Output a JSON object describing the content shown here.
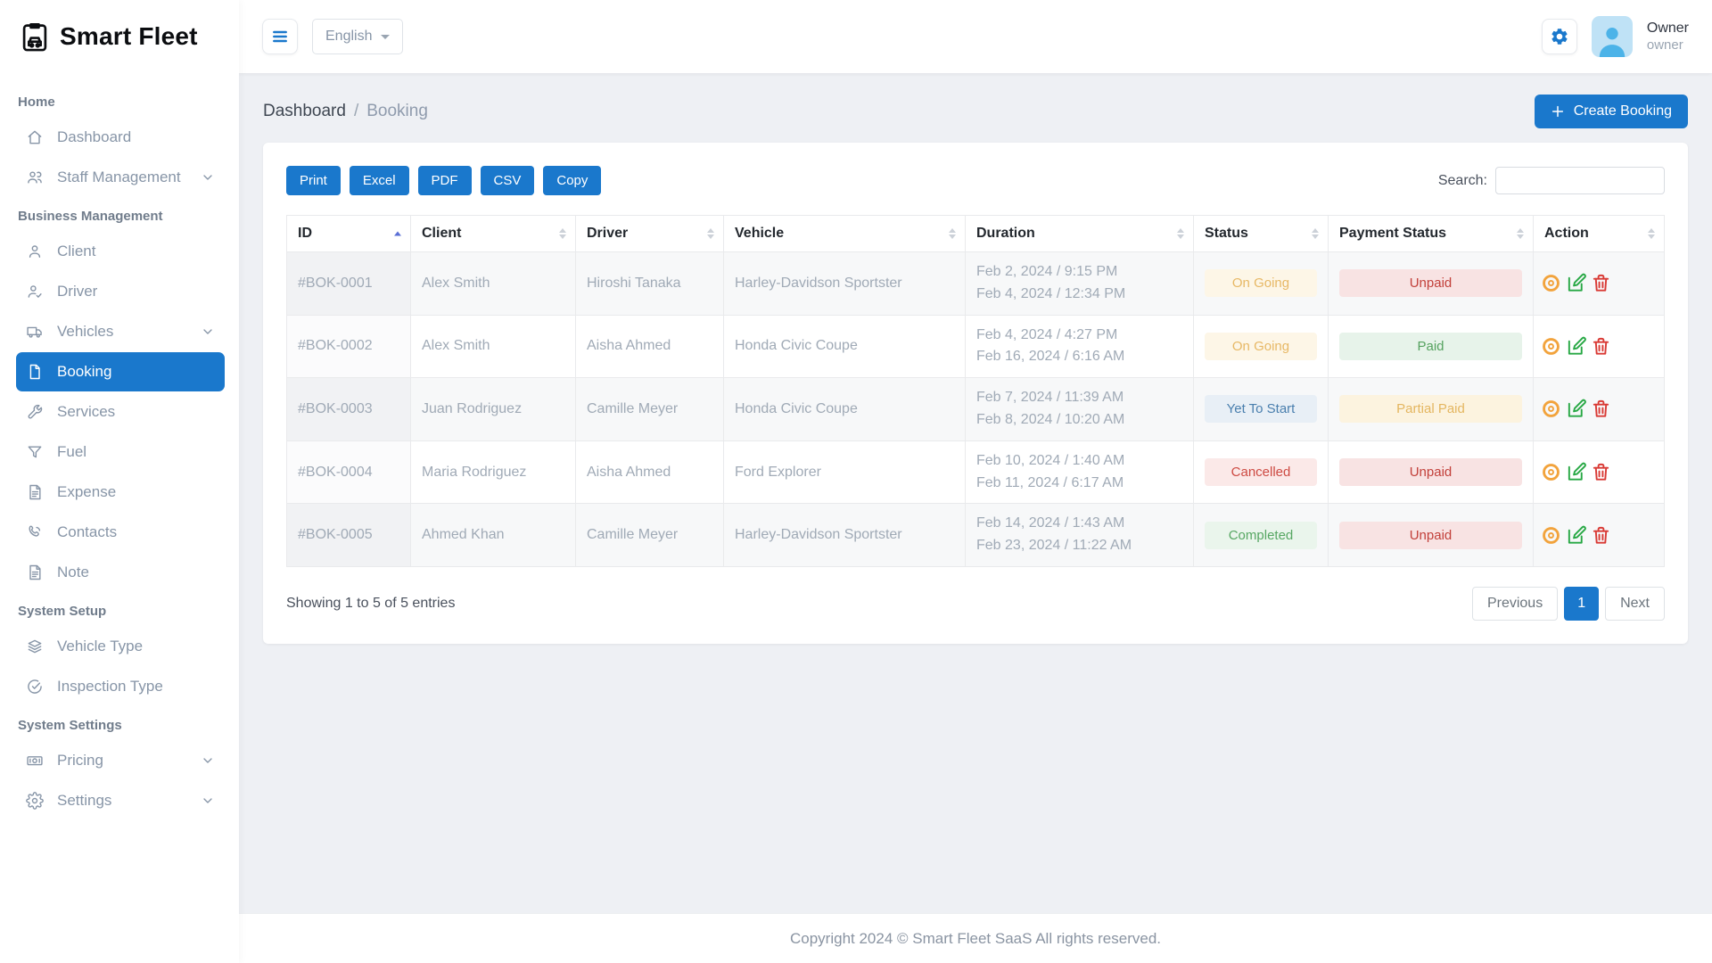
{
  "brand": {
    "name": "Smart Fleet"
  },
  "header": {
    "language": "English",
    "user": {
      "name": "Owner",
      "role": "owner"
    }
  },
  "sidebar": {
    "sections": [
      {
        "label": "Home",
        "items": [
          {
            "label": "Dashboard",
            "icon": "home-icon"
          },
          {
            "label": "Staff Management",
            "icon": "people-icon",
            "expandable": true
          }
        ]
      },
      {
        "label": "Business Management",
        "items": [
          {
            "label": "Client",
            "icon": "person-icon"
          },
          {
            "label": "Driver",
            "icon": "person-check-icon"
          },
          {
            "label": "Vehicles",
            "icon": "truck-icon",
            "expandable": true
          },
          {
            "label": "Booking",
            "icon": "file-icon",
            "active": true
          },
          {
            "label": "Services",
            "icon": "wrench-icon"
          },
          {
            "label": "Fuel",
            "icon": "funnel-icon"
          },
          {
            "label": "Expense",
            "icon": "file-text-icon"
          },
          {
            "label": "Contacts",
            "icon": "phone-icon"
          },
          {
            "label": "Note",
            "icon": "note-icon"
          }
        ]
      },
      {
        "label": "System Setup",
        "items": [
          {
            "label": "Vehicle Type",
            "icon": "layers-icon"
          },
          {
            "label": "Inspection Type",
            "icon": "check-circle-icon"
          }
        ]
      },
      {
        "label": "System Settings",
        "items": [
          {
            "label": "Pricing",
            "icon": "cash-icon",
            "expandable": true
          },
          {
            "label": "Settings",
            "icon": "gear-icon",
            "expandable": true
          }
        ]
      }
    ]
  },
  "breadcrumb": {
    "parent": "Dashboard",
    "separator": "/",
    "current": "Booking"
  },
  "create_button": {
    "label": "Create Booking",
    "icon": "plus-icon"
  },
  "toolbar": {
    "export_buttons": [
      "Print",
      "Excel",
      "PDF",
      "CSV",
      "Copy"
    ],
    "search_label": "Search:",
    "search_value": ""
  },
  "table": {
    "columns": [
      {
        "label": "ID",
        "sorted": "asc"
      },
      {
        "label": "Client"
      },
      {
        "label": "Driver"
      },
      {
        "label": "Vehicle"
      },
      {
        "label": "Duration"
      },
      {
        "label": "Status"
      },
      {
        "label": "Payment Status"
      },
      {
        "label": "Action"
      }
    ],
    "rows": [
      {
        "id": "#BOK-0001",
        "client": "Alex Smith",
        "driver": "Hiroshi Tanaka",
        "vehicle": "Harley-Davidson Sportster",
        "duration": [
          "Feb 2, 2024 / 9:15 PM",
          "Feb 4, 2024 / 12:34 PM"
        ],
        "status": {
          "label": "On Going",
          "type": "ongoing"
        },
        "payment": {
          "label": "Unpaid",
          "type": "unpaid"
        }
      },
      {
        "id": "#BOK-0002",
        "client": "Alex Smith",
        "driver": "Aisha Ahmed",
        "vehicle": "Honda Civic Coupe",
        "duration": [
          "Feb 4, 2024 / 4:27 PM",
          "Feb 16, 2024 / 6:16 AM"
        ],
        "status": {
          "label": "On Going",
          "type": "ongoing"
        },
        "payment": {
          "label": "Paid",
          "type": "paid"
        }
      },
      {
        "id": "#BOK-0003",
        "client": "Juan Rodriguez",
        "driver": "Camille Meyer",
        "vehicle": "Honda Civic Coupe",
        "duration": [
          "Feb 7, 2024 / 11:39 AM",
          "Feb 8, 2024 / 10:20 AM"
        ],
        "status": {
          "label": "Yet To Start",
          "type": "yettostart"
        },
        "payment": {
          "label": "Partial Paid",
          "type": "partial"
        }
      },
      {
        "id": "#BOK-0004",
        "client": "Maria Rodriguez",
        "driver": "Aisha Ahmed",
        "vehicle": "Ford Explorer",
        "duration": [
          "Feb 10, 2024 / 1:40 AM",
          "Feb 11, 2024 / 6:17 AM"
        ],
        "status": {
          "label": "Cancelled",
          "type": "cancelled"
        },
        "payment": {
          "label": "Unpaid",
          "type": "unpaid"
        }
      },
      {
        "id": "#BOK-0005",
        "client": "Ahmed Khan",
        "driver": "Camille Meyer",
        "vehicle": "Harley-Davidson Sportster",
        "duration": [
          "Feb 14, 2024 / 1:43 AM",
          "Feb 23, 2024 / 11:22 AM"
        ],
        "status": {
          "label": "Completed",
          "type": "completed"
        },
        "payment": {
          "label": "Unpaid",
          "type": "unpaid"
        }
      }
    ]
  },
  "summary": "Showing 1 to 5 of 5 entries",
  "pagination": {
    "previous": "Previous",
    "page": "1",
    "next": "Next"
  },
  "footer": {
    "copyright": "Copyright 2024 © Smart Fleet SaaS All rights reserved."
  },
  "colors": {
    "primary": "#1a78cc",
    "status_ongoing": "#e7b865",
    "status_yettostart": "#4a7fae",
    "status_cancelled": "#cd4a42",
    "status_completed": "#57a763",
    "payment_unpaid": "#c2403a",
    "payment_paid": "#55a25f",
    "payment_partial": "#e4b660",
    "action_view": "#f2a33c",
    "action_edit": "#27a844",
    "action_delete": "#d93a35"
  }
}
